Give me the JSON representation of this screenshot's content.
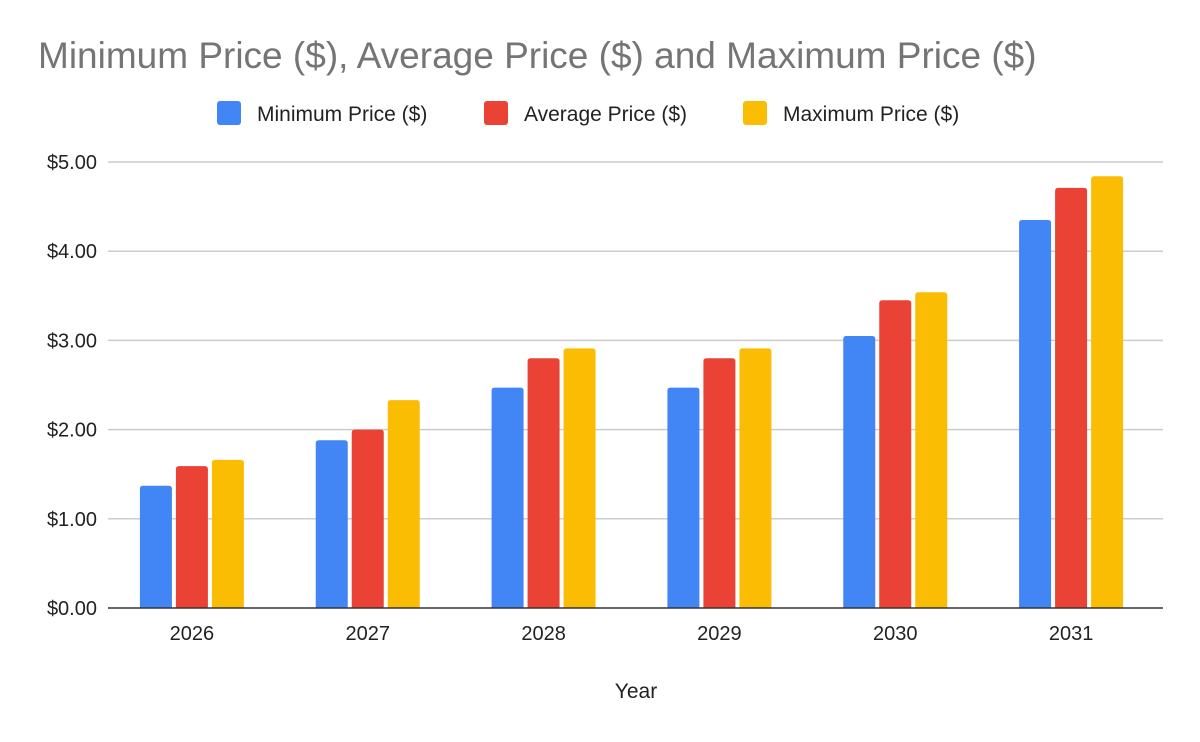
{
  "chart_data": {
    "type": "bar",
    "title": "Minimum Price ($), Average Price ($) and Maximum Price ($)",
    "xlabel": "Year",
    "ylabel": "",
    "categories": [
      "2026",
      "2027",
      "2028",
      "2029",
      "2030",
      "2031"
    ],
    "series": [
      {
        "name": "Minimum Price ($)",
        "color": "#4285f4",
        "values": [
          1.37,
          1.88,
          2.47,
          2.47,
          3.05,
          4.35
        ]
      },
      {
        "name": "Average Price ($)",
        "color": "#ea4335",
        "values": [
          1.59,
          2.0,
          2.8,
          2.8,
          3.45,
          4.71
        ]
      },
      {
        "name": "Maximum Price ($)",
        "color": "#fbbc04",
        "values": [
          1.66,
          2.33,
          2.91,
          2.91,
          3.54,
          4.84
        ]
      }
    ],
    "ylim": [
      0,
      5
    ],
    "yticks": [
      "$0.00",
      "$1.00",
      "$2.00",
      "$3.00",
      "$4.00",
      "$5.00"
    ],
    "grid": true,
    "legend": "top-center"
  }
}
